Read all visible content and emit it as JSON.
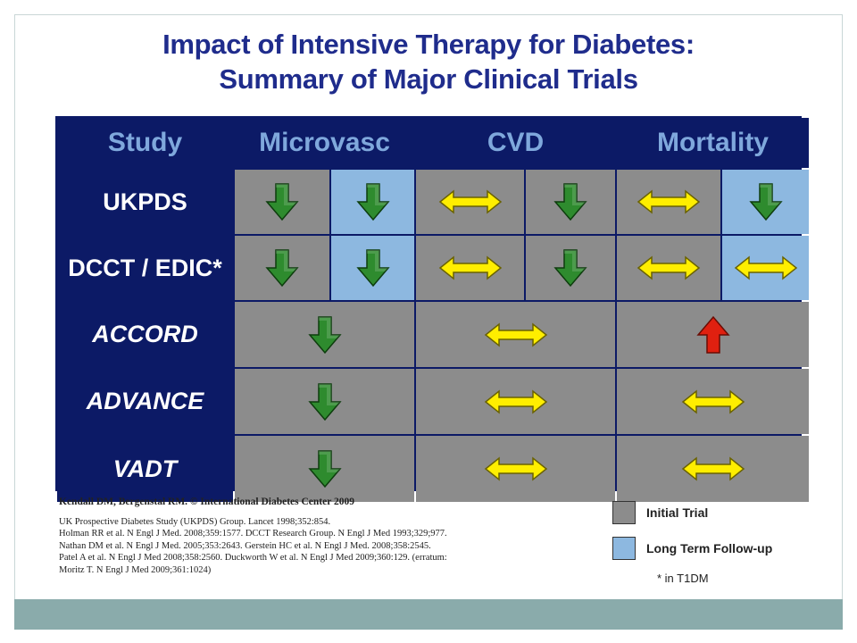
{
  "title": {
    "line1": "Impact of Intensive Therapy for Diabetes:",
    "line2": "Summary of Major Clinical Trials"
  },
  "table": {
    "headers": {
      "study": "Study",
      "microvasc": "Microvasc",
      "cvd": "CVD",
      "mortality": "Mortality"
    },
    "rows": {
      "ukpds": "UKPDS",
      "dcct": "DCCT / EDIC*",
      "accord": "ACCORD",
      "advance": "ADVANCE",
      "vadt": "VADT"
    }
  },
  "colors": {
    "header_bg": "#0c1a66",
    "initial_trial": "#8c8c8c",
    "long_term": "#8db8e0",
    "decrease": "#2e8b2e",
    "no_change": "#ffee00",
    "increase": "#e02010"
  },
  "icons": {
    "decrease": "down-arrow-icon",
    "no_change": "double-arrow-icon",
    "increase": "up-arrow-icon"
  },
  "footer": {
    "credit": "Kendall DM, Bergenstal RM. © International Diabetes Center 2009",
    "refs": [
      "UK Prospective Diabetes Study (UKPDS) Group. Lancet 1998;352:854.",
      "Holman RR et al. N Engl J Med. 2008;359:1577.  DCCT Research Group. N Engl J Med 1993;329;977.",
      "Nathan DM et al. N Engl J Med. 2005;353:2643.  Gerstein HC et al. N Engl J Med. 2008;358:2545.",
      "Patel A et al. N Engl J Med 2008;358:2560.  Duckworth W et al.  N Engl J Med 2009;360:129. (erratum:",
      "Moritz T. N Engl J Med 2009;361:1024)"
    ]
  },
  "legend": {
    "initial": "Initial Trial",
    "long_term": "Long Term Follow-up",
    "note": "* in T1DM"
  }
}
